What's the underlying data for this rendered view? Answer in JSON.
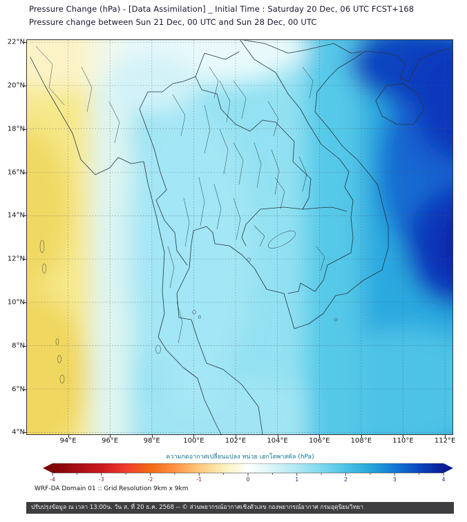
{
  "header": {
    "title_line1": "Pressure Change (hPa) - [Data Assimilation] _ Initial Time : Saturday 20 Dec, 06 UTC FCST+168",
    "title_line2": "Pressure change between Sun 21 Dec, 00 UTC and Sun 28 Dec, 00 UTC"
  },
  "map": {
    "lat_ticks": [
      "22°N",
      "20°N",
      "18°N",
      "16°N",
      "14°N",
      "12°N",
      "10°N",
      "8°N",
      "6°N",
      "4°N"
    ],
    "lon_ticks": [
      "94°E",
      "96°E",
      "98°E",
      "100°E",
      "102°E",
      "104°E",
      "106°E",
      "108°E",
      "110°E",
      "112°E"
    ],
    "field_colors": {
      "base_cyan": "#93e1f2",
      "light_cyan": "#b4ecf7",
      "pale_cyan": "#d2f2f8",
      "white_cyan": "#e9f9fb",
      "white_zone": "#eff9f1",
      "pale_yellow": "#fbf3c6",
      "yellow_band": "#f6e88a",
      "deep_yellow": "#f0d75e",
      "mid_cyan": "#55c8e8",
      "blue": "#29a8de",
      "deep_blue": "#1261d0",
      "navy": "#0a38bc",
      "dark_navy": "#0723a6"
    }
  },
  "colorbar": {
    "label": "ความกดอากาศเปลี่ยนแปลง หน่วย เฮกโตพาสคัล (hPa)",
    "range": [
      -4,
      4
    ],
    "ticks": [
      -4,
      -3,
      -2,
      -1,
      0,
      1,
      2,
      3,
      4
    ],
    "minor_step": 0.5,
    "colors": [
      "#7f0000",
      "#a50f15",
      "#cb181d",
      "#ef3b2c",
      "#f16913",
      "#fd9243",
      "#fdc97e",
      "#faf0b8",
      "#ffffff",
      "#d8f4f8",
      "#aee8f4",
      "#7ed8ee",
      "#4cc2e6",
      "#27a5dc",
      "#1478d2",
      "#0b46be",
      "#081d97"
    ]
  },
  "footer": {
    "domain_info": "WRF-DA Domain 01 :: Grid Resolution 9km x 9km",
    "credit": "ปรับปรุงข้อมูล ณ เวลา 13:00น. วัน ส. ที่ 20 ธ.ค. 2568 -- © ส่วนพยากรณ์อากาศเชิงตัวเลข กองพยากรณ์อากาศ กรมอุตุนิยมวิทยา"
  }
}
